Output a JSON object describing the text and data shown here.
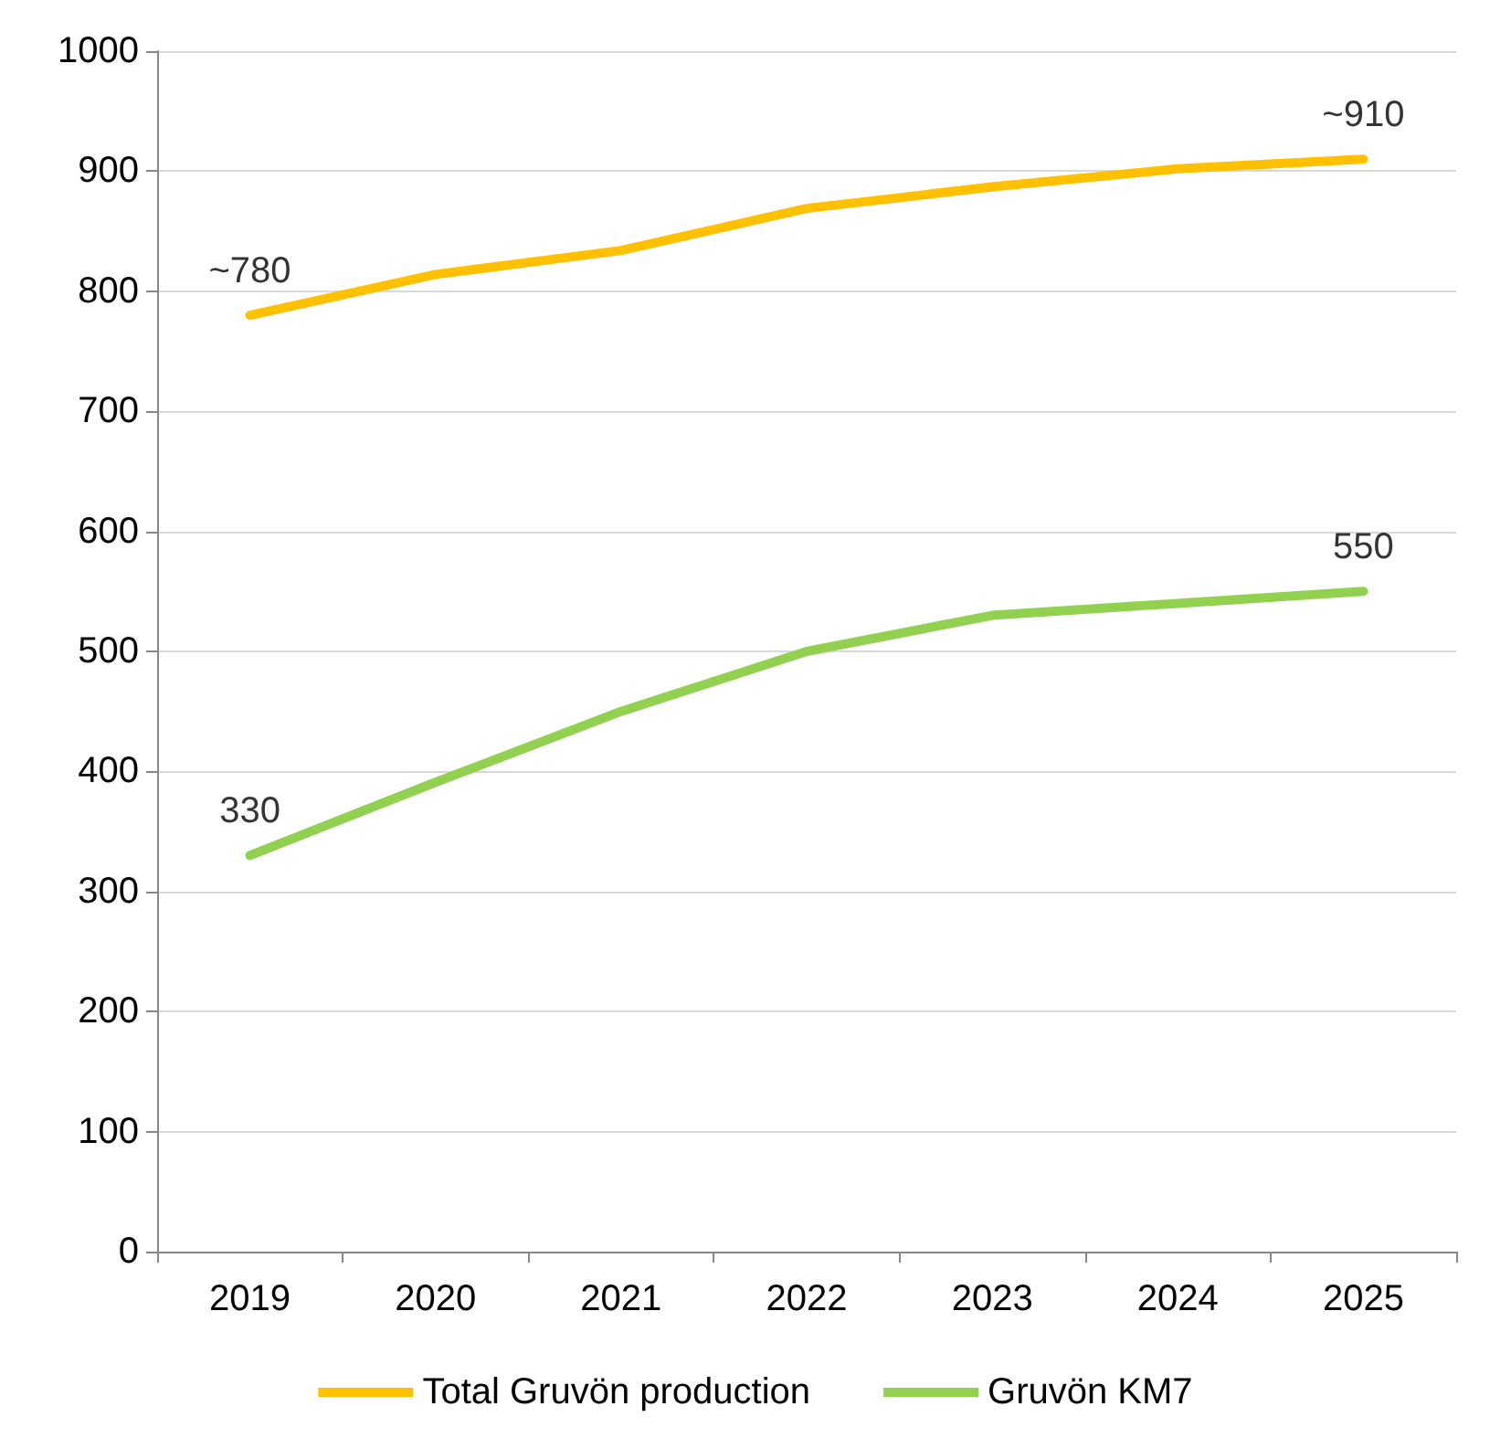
{
  "chart_data": {
    "type": "line",
    "categories": [
      "2019",
      "2020",
      "2021",
      "2022",
      "2023",
      "2024",
      "2025"
    ],
    "series": [
      {
        "name": "Total Gruvön production",
        "color": "#ffc000",
        "values": [
          780,
          814,
          834,
          869,
          887,
          902,
          910
        ]
      },
      {
        "name": "Gruvön KM7",
        "color": "#92d050",
        "values": [
          330,
          391,
          450,
          500,
          530,
          540,
          550
        ]
      }
    ],
    "ylim": [
      0,
      1000
    ],
    "yticks": [
      0,
      100,
      200,
      300,
      400,
      500,
      600,
      700,
      800,
      900,
      1000
    ],
    "grid": "y",
    "legend": "bottom",
    "marker": "none",
    "line_style": "solid",
    "annotations": [
      {
        "text": "~780",
        "x": "2019",
        "y": 780
      },
      {
        "text": "~910",
        "x": "2025",
        "y": 910
      },
      {
        "text": "330",
        "x": "2019",
        "y": 330
      },
      {
        "text": "550",
        "x": "2025",
        "y": 550
      }
    ]
  }
}
